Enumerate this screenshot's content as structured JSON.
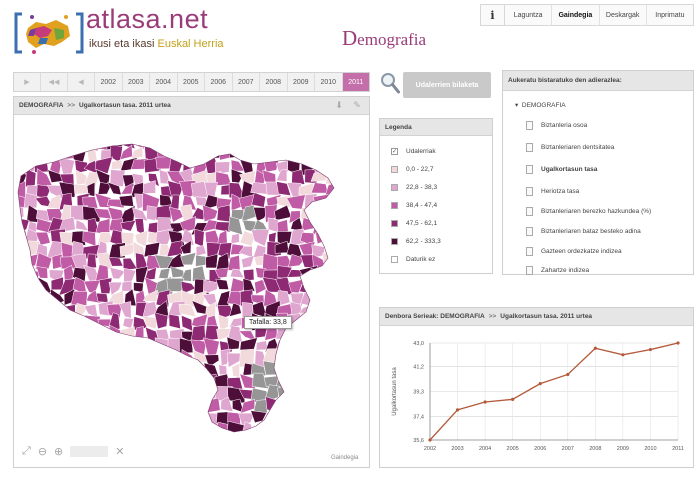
{
  "brand": {
    "name": "atlasa.net",
    "tagline_a": "ikusi eta ikasi",
    "tagline_b": "Euskal Herria"
  },
  "page": {
    "title_initial": "D",
    "title_rest": "emografia"
  },
  "topnav": {
    "items": [
      {
        "label": "Laguntza",
        "active": false
      },
      {
        "label": "Gaindegia",
        "active": true
      },
      {
        "label": "Deskargak",
        "active": false
      },
      {
        "label": "Inprimatu",
        "active": false
      }
    ]
  },
  "timeline": {
    "years": [
      "2002",
      "2003",
      "2004",
      "2005",
      "2006",
      "2007",
      "2008",
      "2009",
      "2010",
      "2011"
    ],
    "selected": "2011"
  },
  "search": {
    "button_label": "Udalerrien bilaketa"
  },
  "map_panel": {
    "crumb_section": "DEMOGRAFIA",
    "crumb_sep": ">>",
    "crumb_title": "Ugalkortasun tasa.  2011 urtea",
    "tooltip": "Tafalla: 33,8",
    "credit": "Gaindegia",
    "gray_color": "#969696"
  },
  "legend": {
    "title": "Legenda",
    "toggle_label": "Udalerriak",
    "classes": [
      {
        "label": "0,0 - 22,7",
        "color": "#f2d9dc"
      },
      {
        "label": "22,8 - 38,3",
        "color": "#dfa6cf"
      },
      {
        "label": "38,4 - 47,4",
        "color": "#c05ba5"
      },
      {
        "label": "47,5 - 62,1",
        "color": "#8e2a74"
      },
      {
        "label": "62,2 - 333,3",
        "color": "#4d0e3a"
      }
    ],
    "no_data_label": "Daturik ez"
  },
  "indicators": {
    "title": "Aukeratu bistaratuko den adierazlea:",
    "root": "DEMOGRAFIA",
    "items": [
      "Biztanleria osoa",
      "Biztanleriaren dentsitatea",
      "Ugalkortasun tasa",
      "Heriotza tasa",
      "Biztanleriaren berezko hazkundea (%)",
      "Biztanleriaren bataz besteko adina",
      "Gazteen ordezkatze indizea",
      "Zahartze indizea"
    ],
    "selected_index": 2
  },
  "series_panel": {
    "crumb_prefix": "Denbora Serieak: DEMOGRAFIA",
    "crumb_sep": ">>",
    "crumb_title": "Ugalkortasun tasa.  2011 urtea"
  },
  "chart_data": {
    "type": "line",
    "x": [
      2002,
      2003,
      2004,
      2005,
      2006,
      2007,
      2008,
      2009,
      2010,
      2011
    ],
    "values": [
      35.6,
      37.9,
      38.5,
      38.7,
      39.9,
      40.6,
      42.6,
      42.1,
      42.5,
      43.0
    ],
    "ylabel": "Ugalkortasun tasa",
    "yticks": [
      35.6,
      37.4,
      39.3,
      41.2,
      43.0
    ],
    "ytick_labels": [
      "35,6",
      "37,4",
      "39,3",
      "41,2",
      "43,0"
    ],
    "ylim": [
      35.6,
      43.0
    ],
    "grid": true,
    "color": "#b35a3a"
  }
}
